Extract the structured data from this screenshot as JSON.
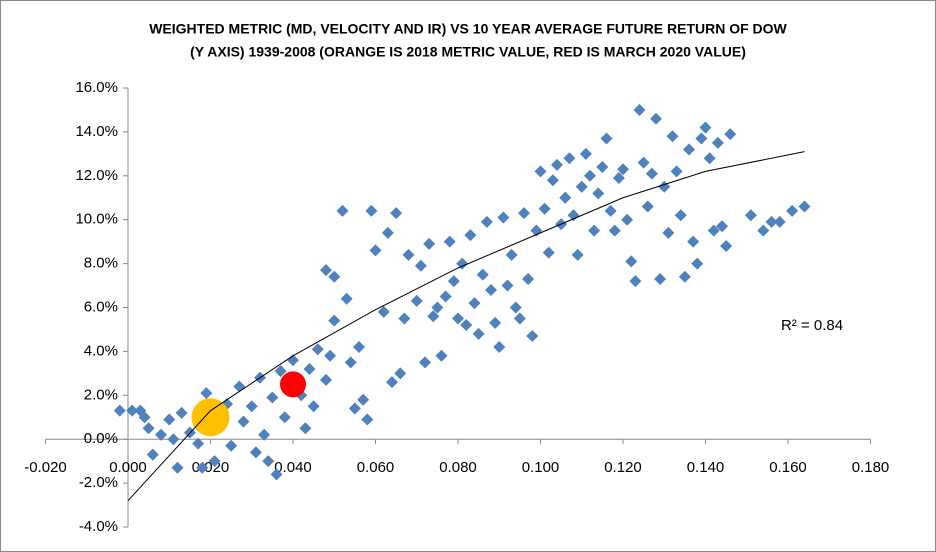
{
  "chart_data": {
    "type": "scatter",
    "title": [
      "WEIGHTED METRIC (MD, VELOCITY AND IR) VS 10 YEAR AVERAGE FUTURE RETURN OF DOW",
      "(Y AXIS) 1939-2008 (ORANGE IS 2018 METRIC VALUE, RED IS MARCH 2020 VALUE)"
    ],
    "annotation": "R² = 0.84",
    "series": [
      {
        "color": "#4f81bd",
        "x": [
          -0.002,
          0.001,
          0.003,
          0.004,
          0.005,
          0.006,
          0.008,
          0.01,
          0.011,
          0.012,
          0.013,
          0.015,
          0.017,
          0.018,
          0.019,
          0.021,
          0.022,
          0.024,
          0.025,
          0.027,
          0.028,
          0.03,
          0.031,
          0.032,
          0.033,
          0.034,
          0.035,
          0.036,
          0.037,
          0.038,
          0.04,
          0.042,
          0.043,
          0.044,
          0.045,
          0.046,
          0.048,
          0.049,
          0.05,
          0.048,
          0.05,
          0.052,
          0.053,
          0.054,
          0.055,
          0.056,
          0.057,
          0.058,
          0.059,
          0.06,
          0.062,
          0.063,
          0.064,
          0.065,
          0.066,
          0.067,
          0.068,
          0.07,
          0.071,
          0.072,
          0.073,
          0.074,
          0.075,
          0.076,
          0.077,
          0.078,
          0.079,
          0.08,
          0.081,
          0.082,
          0.083,
          0.084,
          0.085,
          0.086,
          0.087,
          0.088,
          0.089,
          0.09,
          0.091,
          0.092,
          0.093,
          0.094,
          0.095,
          0.096,
          0.097,
          0.098,
          0.099,
          0.1,
          0.101,
          0.102,
          0.103,
          0.104,
          0.105,
          0.106,
          0.107,
          0.108,
          0.109,
          0.11,
          0.111,
          0.112,
          0.113,
          0.114,
          0.115,
          0.116,
          0.117,
          0.118,
          0.119,
          0.12,
          0.121,
          0.122,
          0.123,
          0.124,
          0.125,
          0.126,
          0.127,
          0.128,
          0.129,
          0.13,
          0.131,
          0.132,
          0.133,
          0.134,
          0.135,
          0.136,
          0.137,
          0.138,
          0.139,
          0.14,
          0.141,
          0.142,
          0.143,
          0.144,
          0.145,
          0.146,
          0.151,
          0.154,
          0.156,
          0.158,
          0.161,
          0.164
        ],
        "values": [
          1.3,
          1.3,
          1.3,
          1.0,
          0.5,
          -0.7,
          0.2,
          0.9,
          0.0,
          -1.3,
          1.2,
          0.3,
          -0.2,
          -1.3,
          2.1,
          -1.0,
          0.5,
          1.6,
          -0.3,
          2.4,
          0.8,
          1.5,
          -0.6,
          2.8,
          0.2,
          -1.0,
          1.9,
          -1.6,
          3.1,
          1.0,
          3.6,
          2.0,
          0.5,
          3.2,
          1.5,
          4.1,
          2.7,
          3.8,
          5.4,
          7.7,
          7.4,
          10.4,
          6.4,
          3.5,
          1.4,
          4.2,
          1.8,
          0.9,
          10.4,
          8.6,
          5.8,
          9.4,
          2.6,
          10.3,
          3.0,
          5.5,
          8.4,
          6.3,
          7.9,
          3.5,
          8.9,
          5.6,
          6.0,
          3.8,
          6.5,
          9.0,
          7.2,
          5.5,
          8.0,
          5.2,
          9.3,
          6.2,
          4.8,
          7.5,
          9.9,
          6.8,
          5.3,
          4.2,
          10.1,
          7.0,
          8.4,
          6.0,
          5.5,
          10.3,
          7.3,
          4.7,
          9.5,
          12.2,
          10.5,
          8.5,
          11.8,
          12.5,
          9.8,
          11.0,
          12.8,
          10.2,
          8.4,
          11.5,
          13.0,
          12.0,
          9.5,
          11.2,
          12.4,
          13.7,
          10.4,
          9.5,
          11.9,
          12.3,
          10.0,
          8.1,
          7.2,
          15.0,
          12.6,
          10.6,
          12.1,
          14.6,
          7.3,
          11.5,
          9.4,
          13.8,
          12.2,
          10.2,
          7.4,
          13.2,
          9.0,
          8.0,
          13.7,
          14.2,
          12.8,
          9.5,
          13.5,
          9.7,
          8.8,
          13.9,
          10.2,
          9.5,
          9.9,
          9.9,
          10.4,
          10.6
        ]
      },
      {
        "color": "#ffc000",
        "x": [
          0.02
        ],
        "values": [
          1.0
        ]
      },
      {
        "color": "#ff0000",
        "x": [
          0.04
        ],
        "values": [
          2.5
        ]
      }
    ],
    "trendline": {
      "color": "#000000",
      "x": [
        0.0,
        0.02,
        0.04,
        0.06,
        0.08,
        0.1,
        0.12,
        0.14,
        0.164
      ],
      "values": [
        -2.8,
        1.3,
        3.8,
        5.9,
        7.8,
        9.4,
        11.0,
        12.2,
        13.1
      ]
    },
    "xlim": [
      -0.02,
      0.18
    ],
    "xticks": [
      {
        "value": -0.02,
        "label": "-0.020"
      },
      {
        "value": 0,
        "label": "0.000"
      },
      {
        "value": 0.02,
        "label": "0.020"
      },
      {
        "value": 0.04,
        "label": "0.040"
      },
      {
        "value": 0.06,
        "label": "0.060"
      },
      {
        "value": 0.08,
        "label": "0.080"
      },
      {
        "value": 0.1,
        "label": "0.100"
      },
      {
        "value": 0.12,
        "label": "0.120"
      },
      {
        "value": 0.14,
        "label": "0.140"
      },
      {
        "value": 0.16,
        "label": "0.160"
      },
      {
        "value": 0.18,
        "label": "0.180"
      }
    ],
    "ylim": [
      -4,
      16
    ],
    "yticks": [
      {
        "value": -4,
        "label": "-4.0%"
      },
      {
        "value": -2,
        "label": "-2.0%"
      },
      {
        "value": 0,
        "label": "0.0%"
      },
      {
        "value": 2,
        "label": "2.0%"
      },
      {
        "value": 4,
        "label": "4.0%"
      },
      {
        "value": 6,
        "label": "6.0%"
      },
      {
        "value": 8,
        "label": "8.0%"
      },
      {
        "value": 10,
        "label": "10.0%"
      },
      {
        "value": 12,
        "label": "12.0%"
      },
      {
        "value": 14,
        "label": "14.0%"
      },
      {
        "value": 16,
        "label": "16.0%"
      }
    ]
  }
}
